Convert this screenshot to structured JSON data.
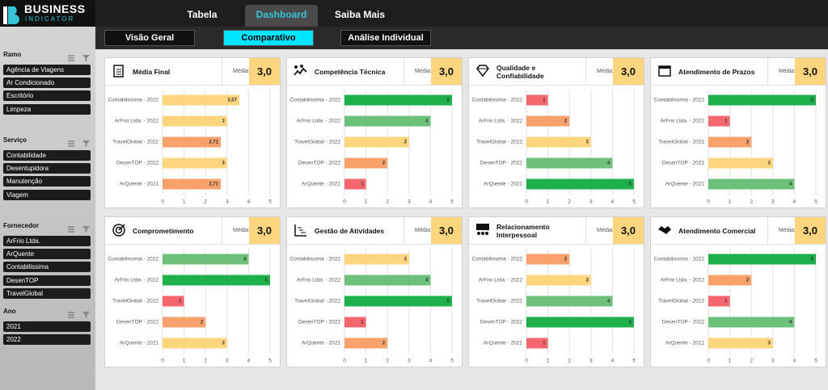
{
  "header": {
    "logo": "BUSINESS",
    "logo_sub": "INDICATOR",
    "tabs": [
      "Tabela",
      "Dashboard",
      "Saiba Mais"
    ],
    "active_tab": 1
  },
  "subtabs": {
    "items": [
      "Visão Geral",
      "Comparativo",
      "Análise Individual"
    ],
    "active": 1
  },
  "filters": [
    {
      "title": "Ramo",
      "options": [
        "Agência de Viagens",
        "Ar Condicionado",
        "Escritório",
        "Limpeza"
      ]
    },
    {
      "title": "Serviço",
      "options": [
        "Contabilidade",
        "Desentupidora",
        "Manutenção",
        "Viagem"
      ]
    },
    {
      "title": "Fornecedor",
      "options": [
        "ArFrio Ltda.",
        "ArQuente",
        "Contabilissima",
        "DesenTOP",
        "TravelGlobal"
      ]
    },
    {
      "title": "Ano",
      "options": [
        "2021",
        "2022"
      ]
    }
  ],
  "panels": [
    {
      "title": "Média Final",
      "media_label": "Média:",
      "media": "3,0",
      "categories": [
        "Contabilissima - 2022",
        "ArFrio Ltda. - 2022",
        "TravelGlobal - 2022",
        "DesenTOP - 2022",
        "ArQuente - 2021"
      ],
      "values": [
        3.57,
        3,
        2.71,
        3,
        2.71
      ],
      "value_labels": [
        "3,57",
        "3",
        "2,71",
        "3",
        "2,71"
      ],
      "colors": [
        "#fdd57e",
        "#fdd57e",
        "#f9a16b",
        "#fdd57e",
        "#f9a16b"
      ],
      "xlim": [
        0,
        5
      ],
      "xticks": [
        0,
        1,
        2,
        3,
        4,
        5
      ]
    },
    {
      "title": "Competência Técnica",
      "media_label": "Média:",
      "media": "3,0",
      "categories": [
        "Contabilissima - 2022",
        "ArFrio Ltda. - 2022",
        "TravelGlobal - 2022",
        "DesenTOP - 2022",
        "ArQuente - 2021"
      ],
      "values": [
        5,
        4,
        3,
        2,
        1
      ],
      "colors": [
        "#1db04b",
        "#6cc07a",
        "#fdd57e",
        "#f9a16b",
        "#f4676e"
      ],
      "xlim": [
        0,
        5
      ],
      "xticks": [
        0,
        1,
        2,
        3,
        4,
        5
      ]
    },
    {
      "title": "Qualidade e Confiabilidade",
      "media_label": "Média:",
      "media": "3,0",
      "categories": [
        "Contabilissima - 2022",
        "ArFrio Ltda. - 2022",
        "TravelGlobal - 2022",
        "DesenTOP - 2022",
        "ArQuente - 2021"
      ],
      "values": [
        1,
        2,
        3,
        4,
        5
      ],
      "colors": [
        "#f4676e",
        "#f9a16b",
        "#fdd57e",
        "#6cc07a",
        "#1db04b"
      ],
      "xlim": [
        0,
        5
      ],
      "xticks": [
        0,
        1,
        2,
        3,
        4,
        5
      ]
    },
    {
      "title": "Atendimento de Prazos",
      "media_label": "Média:",
      "media": "3,0",
      "categories": [
        "Contabilissima - 2022",
        "ArFrio Ltda. - 2022",
        "TravelGlobal - 2022",
        "DesenTOP - 2022",
        "ArQuente - 2021"
      ],
      "values": [
        5,
        1,
        2,
        3,
        4
      ],
      "colors": [
        "#1db04b",
        "#f4676e",
        "#f9a16b",
        "#fdd57e",
        "#6cc07a"
      ],
      "xlim": [
        0,
        5
      ],
      "xticks": [
        0,
        1,
        2,
        3,
        4,
        5
      ]
    },
    {
      "title": "Comprometimento",
      "media_label": "Média:",
      "media": "3,0",
      "categories": [
        "Contabilissima - 2022",
        "ArFrio Ltda. - 2022",
        "TravelGlobal - 2022",
        "DesenTOP - 2022",
        "ArQuente - 2021"
      ],
      "values": [
        4,
        5,
        1,
        2,
        3
      ],
      "colors": [
        "#6cc07a",
        "#1db04b",
        "#f4676e",
        "#f9a16b",
        "#fdd57e"
      ],
      "xlim": [
        0,
        5
      ],
      "xticks": [
        0,
        1,
        2,
        3,
        4,
        5
      ]
    },
    {
      "title": "Gestão de Atividades",
      "media_label": "Média:",
      "media": "3,0",
      "categories": [
        "Contabilissima - 2022",
        "ArFrio Ltda. - 2022",
        "TravelGlobal - 2022",
        "DesenTOP - 2022",
        "ArQuente - 2021"
      ],
      "values": [
        3,
        4,
        5,
        1,
        2
      ],
      "colors": [
        "#fdd57e",
        "#6cc07a",
        "#1db04b",
        "#f4676e",
        "#f9a16b"
      ],
      "xlim": [
        0,
        5
      ],
      "xticks": [
        0,
        1,
        2,
        3,
        4,
        5
      ]
    },
    {
      "title": "Relacionamento Interpessoal",
      "media_label": "Média:",
      "media": "3,0",
      "categories": [
        "Contabilissima - 2022",
        "ArFrio Ltda. - 2022",
        "TravelGlobal - 2022",
        "DesenTOP - 2022",
        "ArQuente - 2021"
      ],
      "values": [
        2,
        3,
        4,
        5,
        1
      ],
      "colors": [
        "#f9a16b",
        "#fdd57e",
        "#6cc07a",
        "#1db04b",
        "#f4676e"
      ],
      "xlim": [
        0,
        5
      ],
      "xticks": [
        0,
        1,
        2,
        3,
        4,
        5
      ]
    },
    {
      "title": "Atendimento Comercial",
      "media_label": "Média:",
      "media": "3,0",
      "categories": [
        "Contabilissima - 2022",
        "ArFrio Ltda. - 2022",
        "TravelGlobal - 2022",
        "DesenTOP - 2022",
        "ArQuente - 2021"
      ],
      "values": [
        5,
        2,
        1,
        4,
        3
      ],
      "colors": [
        "#1db04b",
        "#f9a16b",
        "#f4676e",
        "#6cc07a",
        "#fdd57e"
      ],
      "xlim": [
        0,
        5
      ],
      "xticks": [
        0,
        1,
        2,
        3,
        4,
        5
      ]
    }
  ]
}
